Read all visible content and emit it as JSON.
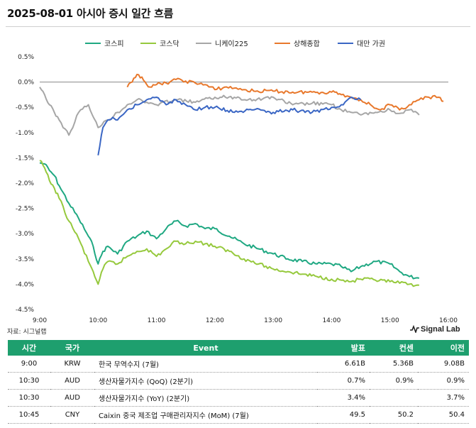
{
  "header": {
    "title": "2025-08-01 아시아 증시 일간 흐름"
  },
  "footer": {
    "source": "자료: 시그널랩",
    "brand": "Signal Lab"
  },
  "chart_data": {
    "type": "line",
    "ylim": [
      -4.5,
      0.5
    ],
    "yticks": [
      0.5,
      0.0,
      -0.5,
      -1.0,
      -1.5,
      -2.0,
      -2.5,
      -3.0,
      -3.5,
      -4.0,
      -4.5
    ],
    "ytick_labels": [
      "0.5%",
      "0.0%",
      "-0.5%",
      "-1.0%",
      "-1.5%",
      "-2.0%",
      "-2.5%",
      "-3.0%",
      "-3.5%",
      "-4.0%",
      "-4.5%"
    ],
    "xlim": [
      "9:00",
      "16:00"
    ],
    "xticks": [
      "9:00",
      "10:00",
      "11:00",
      "12:00",
      "13:00",
      "14:00",
      "15:00",
      "16:00"
    ],
    "legend_position": "top",
    "series": [
      {
        "name": "코스피",
        "color": "#1fa882",
        "x": [
          "9:00",
          "9:05",
          "9:10",
          "9:15",
          "9:20",
          "9:30",
          "9:40",
          "9:50",
          "9:55",
          "10:00",
          "10:05",
          "10:10",
          "10:20",
          "10:30",
          "10:40",
          "10:50",
          "11:00",
          "11:10",
          "11:20",
          "11:30",
          "11:40",
          "11:50",
          "12:00",
          "12:15",
          "12:30",
          "12:45",
          "13:00",
          "13:15",
          "13:30",
          "13:45",
          "14:00",
          "14:10",
          "14:20",
          "14:30",
          "14:45",
          "15:00",
          "15:10",
          "15:20",
          "15:30"
        ],
        "values": [
          -1.6,
          -1.62,
          -1.75,
          -1.85,
          -2.05,
          -2.4,
          -2.7,
          -3.05,
          -3.25,
          -3.6,
          -3.35,
          -3.25,
          -3.4,
          -3.15,
          -3.05,
          -2.95,
          -3.1,
          -2.9,
          -2.75,
          -2.85,
          -2.8,
          -2.9,
          -2.9,
          -3.05,
          -3.2,
          -3.3,
          -3.4,
          -3.5,
          -3.55,
          -3.6,
          -3.6,
          -3.65,
          -3.75,
          -3.65,
          -3.55,
          -3.6,
          -3.75,
          -3.85,
          -3.88
        ]
      },
      {
        "name": "코스닥",
        "color": "#96c93d",
        "x": [
          "9:00",
          "9:05",
          "9:10",
          "9:15",
          "9:20",
          "9:30",
          "9:40",
          "9:50",
          "9:55",
          "10:00",
          "10:05",
          "10:10",
          "10:20",
          "10:30",
          "10:40",
          "10:50",
          "11:00",
          "11:10",
          "11:20",
          "11:30",
          "11:40",
          "11:50",
          "12:00",
          "12:15",
          "12:30",
          "12:45",
          "13:00",
          "13:15",
          "13:30",
          "13:45",
          "14:00",
          "14:10",
          "14:20",
          "14:30",
          "14:45",
          "15:00",
          "15:10",
          "15:20",
          "15:30"
        ],
        "values": [
          -1.55,
          -1.7,
          -1.95,
          -2.1,
          -2.3,
          -2.75,
          -3.1,
          -3.55,
          -3.75,
          -4.0,
          -3.7,
          -3.55,
          -3.6,
          -3.45,
          -3.35,
          -3.3,
          -3.45,
          -3.3,
          -3.15,
          -3.2,
          -3.15,
          -3.2,
          -3.25,
          -3.35,
          -3.5,
          -3.6,
          -3.7,
          -3.75,
          -3.8,
          -3.85,
          -3.9,
          -3.92,
          -3.95,
          -3.9,
          -3.92,
          -3.95,
          -3.98,
          -4.0,
          -4.02
        ]
      },
      {
        "name": "니케이225",
        "color": "#a6a6a6",
        "x": [
          "9:00",
          "9:05",
          "9:10",
          "9:15",
          "9:20",
          "9:30",
          "9:40",
          "9:50",
          "10:00",
          "10:10",
          "10:20",
          "10:30",
          "10:40",
          "10:50",
          "11:00",
          "11:20",
          "11:40",
          "12:00",
          "12:20",
          "12:40",
          "13:00",
          "13:20",
          "13:40",
          "14:00",
          "14:10",
          "14:20",
          "14:30",
          "14:45",
          "15:00",
          "15:10",
          "15:20",
          "15:30"
        ],
        "values": [
          -0.1,
          -0.25,
          -0.45,
          -0.6,
          -0.75,
          -1.05,
          -0.6,
          -0.45,
          -0.9,
          -0.75,
          -0.6,
          -0.45,
          -0.35,
          -0.4,
          -0.45,
          -0.35,
          -0.4,
          -0.3,
          -0.3,
          -0.35,
          -0.3,
          -0.45,
          -0.42,
          -0.45,
          -0.55,
          -0.6,
          -0.65,
          -0.6,
          -0.55,
          -0.62,
          -0.55,
          -0.65
        ]
      },
      {
        "name": "상해종합",
        "color": "#e8782c",
        "x": [
          "10:30",
          "10:35",
          "10:40",
          "10:45",
          "10:50",
          "10:55",
          "11:00",
          "11:10",
          "11:20",
          "11:30",
          "11:40",
          "11:50",
          "12:00",
          "12:10",
          "12:20",
          "12:30",
          "12:40",
          "13:00",
          "13:20",
          "13:40",
          "14:00",
          "14:05",
          "14:10",
          "14:20",
          "14:30",
          "14:40",
          "14:50",
          "15:00",
          "15:10",
          "15:20",
          "15:30",
          "15:40",
          "15:50",
          "15:55"
        ],
        "values": [
          -0.1,
          0.0,
          0.15,
          0.1,
          -0.05,
          -0.1,
          -0.05,
          -0.02,
          0.05,
          0.02,
          -0.02,
          -0.05,
          -0.15,
          -0.1,
          -0.12,
          -0.15,
          -0.18,
          -0.18,
          -0.2,
          -0.2,
          -0.2,
          -0.2,
          -0.25,
          -0.3,
          -0.35,
          -0.45,
          -0.55,
          -0.45,
          -0.55,
          -0.45,
          -0.35,
          -0.3,
          -0.3,
          -0.38
        ]
      },
      {
        "name": "대만 가권",
        "color": "#3a66c4",
        "x": [
          "10:00",
          "10:05",
          "10:10",
          "10:15",
          "10:20",
          "10:30",
          "10:40",
          "10:50",
          "11:00",
          "11:10",
          "11:20",
          "11:30",
          "11:40",
          "11:50",
          "12:00",
          "12:20",
          "12:40",
          "13:00",
          "13:20",
          "13:40",
          "14:00",
          "14:10",
          "14:20",
          "14:30"
        ],
        "values": [
          -1.45,
          -0.9,
          -0.75,
          -0.7,
          -0.75,
          -0.55,
          -0.45,
          -0.35,
          -0.3,
          -0.45,
          -0.35,
          -0.45,
          -0.55,
          -0.5,
          -0.5,
          -0.6,
          -0.55,
          -0.6,
          -0.55,
          -0.6,
          -0.5,
          -0.45,
          -0.3,
          -0.35
        ]
      }
    ]
  },
  "table": {
    "headers": [
      "시간",
      "국가",
      "Event",
      "발표",
      "컨센",
      "이전"
    ],
    "rows": [
      [
        "9:00",
        "KRW",
        "한국 무역수지 (7월)",
        "6.61B",
        "5.36B",
        "9.08B"
      ],
      [
        "10:30",
        "AUD",
        "생산자물가지수 (QoQ) (2분기)",
        "0.7%",
        "0.9%",
        "0.9%"
      ],
      [
        "10:30",
        "AUD",
        "생산자물가지수 (YoY) (2분기)",
        "3.4%",
        "",
        "3.7%"
      ],
      [
        "10:45",
        "CNY",
        "Caixin 중국 제조업 구매관리자지수 (MoM) (7월)",
        "49.5",
        "50.2",
        "50.4"
      ]
    ]
  }
}
